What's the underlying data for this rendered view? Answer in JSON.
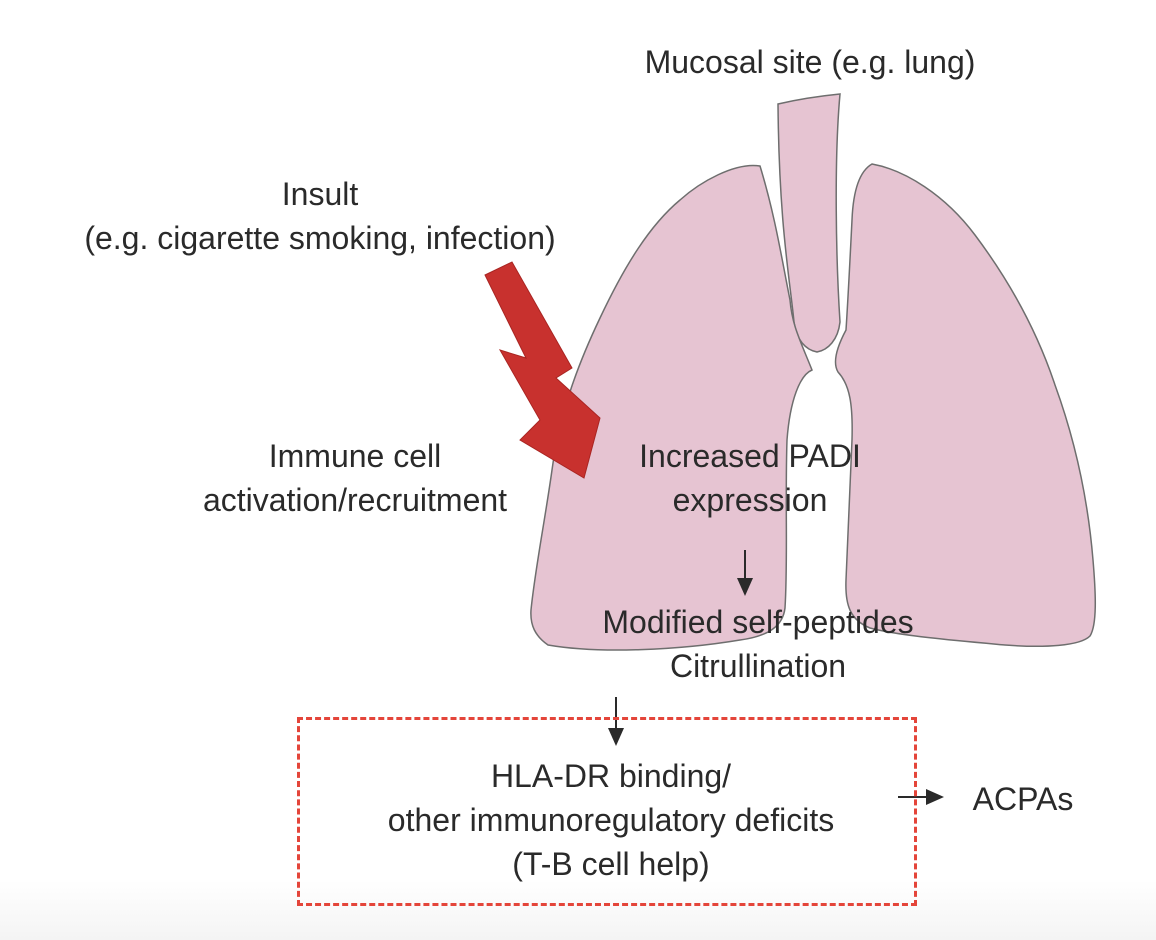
{
  "diagram": {
    "mucosal_site": "Mucosal site (e.g. lung)",
    "insult": {
      "line1": "Insult",
      "line2": "(e.g. cigarette smoking, infection)"
    },
    "immune": {
      "line1": "Immune cell",
      "line2": "activation/recruitment"
    },
    "padi": {
      "line1": "Increased PADI",
      "line2": "expression"
    },
    "modified": {
      "line1": "Modified self-peptides",
      "line2": "Citrullination"
    },
    "hla": {
      "line1": "HLA-DR binding/",
      "line2": "other immunoregulatory deficits",
      "line3": "(T-B cell help)"
    },
    "acpas": "ACPAs"
  },
  "colors": {
    "lung_fill": "#e6c4d2",
    "lung_stroke": "#6e6e6e",
    "insult_arrow": "#c8312e",
    "dashed_box": "#e4453a",
    "text": "#2a2a2a"
  }
}
